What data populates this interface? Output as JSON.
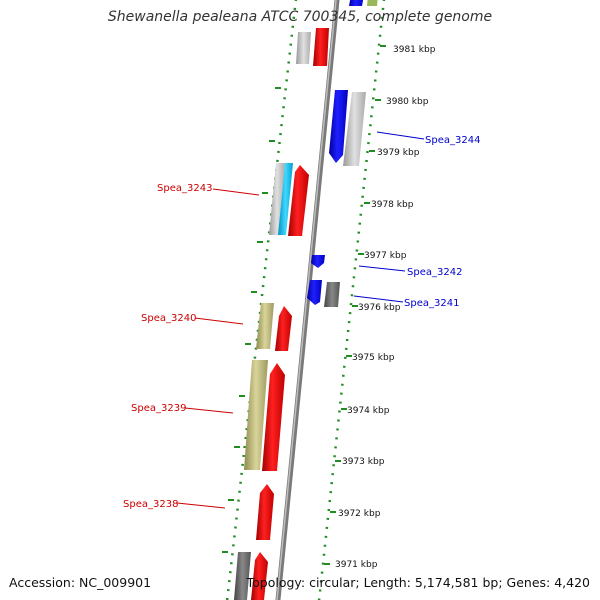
{
  "title": "Shewanella pealeana ATCC 700345, complete genome",
  "footer": {
    "accession": "Accession: NC_009901",
    "topology": "Topology: circular; Length: 5,174,581 bp; Genes: 4,420"
  },
  "colors": {
    "forward": "#ff0000",
    "reverse": "#0000ff",
    "backbone": "#888888",
    "ticks": "#228b22",
    "rna": "#bdb76b",
    "label_forward": "#cc0000",
    "label_reverse": "#0000cc"
  },
  "kbp_ticks": [
    "3981 kbp",
    "3980 kbp",
    "3979 kbp",
    "3978 kbp",
    "3977 kbp",
    "3976 kbp",
    "3975 kbp",
    "3974 kbp",
    "3973 kbp",
    "3972 kbp",
    "3971 kbp"
  ],
  "gene_labels": [
    {
      "id": "Spea_3244",
      "text": "Spea_3244",
      "strand": "reverse"
    },
    {
      "id": "Spea_3243",
      "text": "Spea_3243",
      "strand": "forward"
    },
    {
      "id": "Spea_3242",
      "text": "Spea_3242",
      "strand": "reverse"
    },
    {
      "id": "Spea_3241",
      "text": "Spea_3241",
      "strand": "reverse"
    },
    {
      "id": "Spea_3240",
      "text": "Spea_3240",
      "strand": "forward"
    },
    {
      "id": "Spea_3239",
      "text": "Spea_3239",
      "strand": "forward"
    },
    {
      "id": "Spea_3238",
      "text": "Spea_3238",
      "strand": "forward"
    }
  ]
}
